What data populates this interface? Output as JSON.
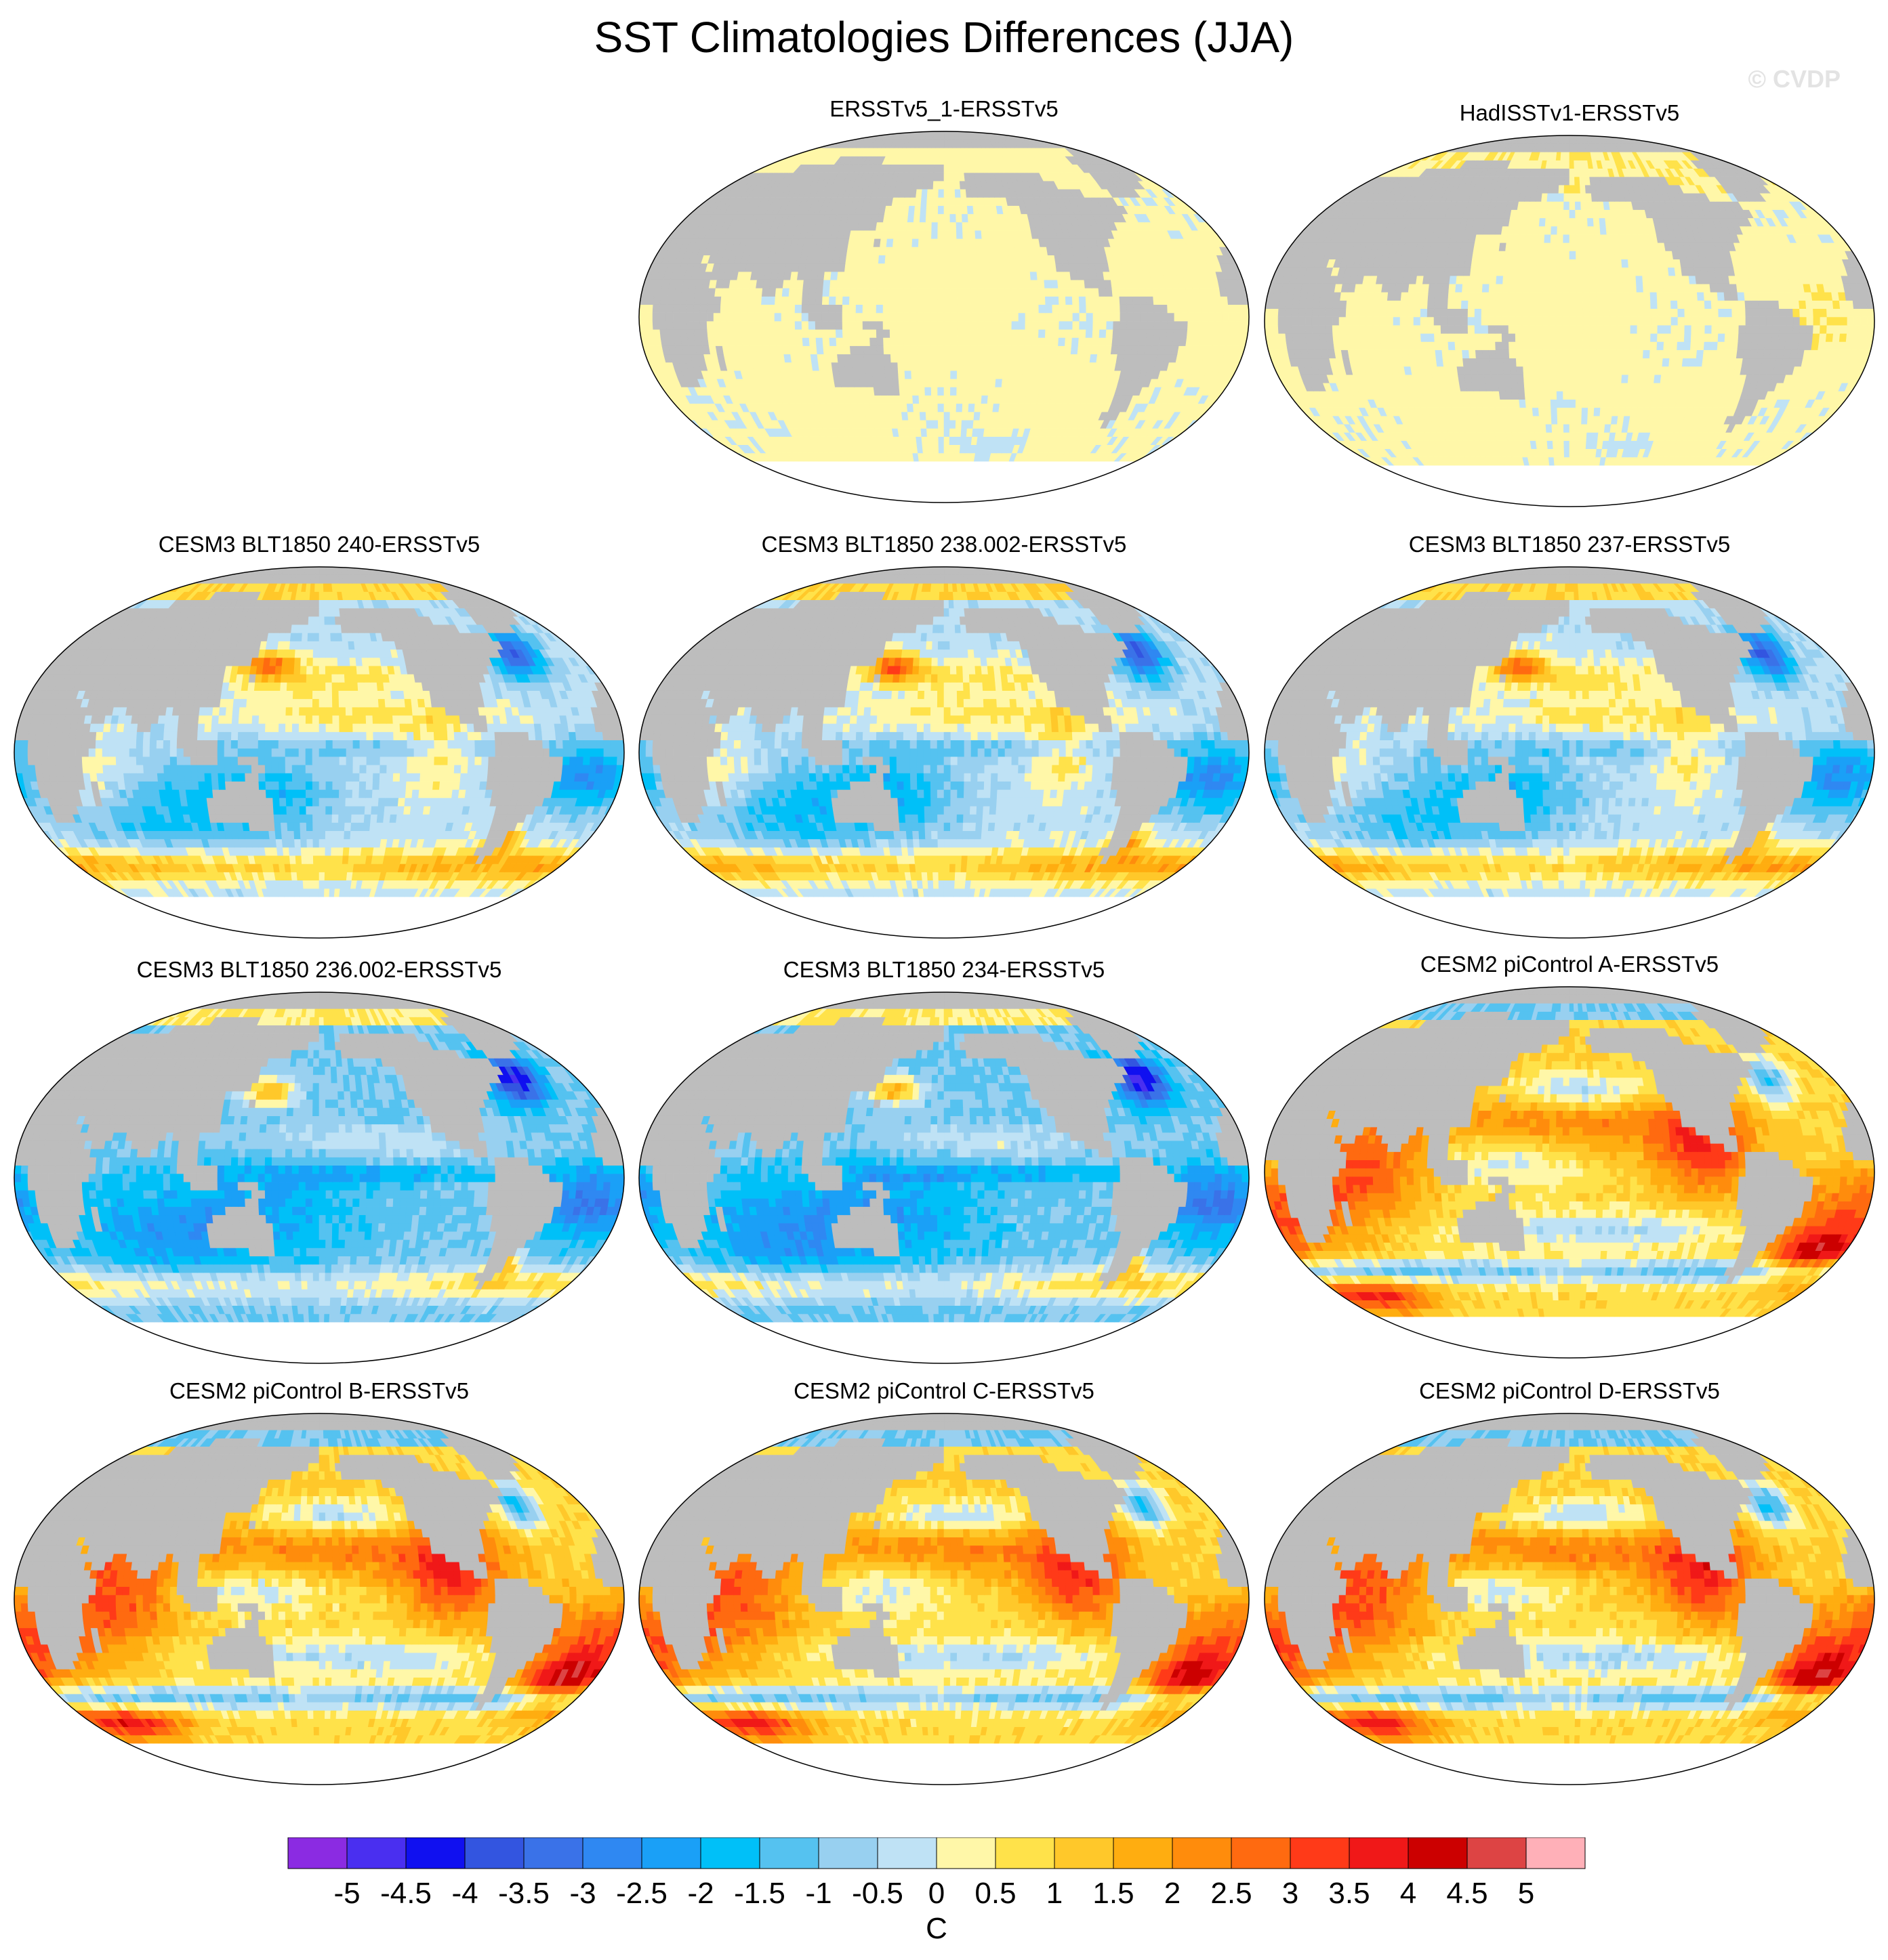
{
  "chart_data": {
    "type": "heatmap",
    "title": "SST Climatologies Differences (JJA)",
    "watermark": "© CVDP",
    "units": "C",
    "projection": "robinson-like world map, Pacific-centered",
    "panels": [
      {
        "id": "p1",
        "title": "ERSSTv5_1-ERSSTv5",
        "pattern": "uniform",
        "amp": 0.25
      },
      {
        "id": "p2",
        "title": "HadISSTv1-ERSSTv5",
        "pattern": "uniform",
        "amp": 0.7
      },
      {
        "id": "p3",
        "title": "CESM3 BLT1850 240-ERSSTv5",
        "pattern": "cesm3",
        "amp": 1.0
      },
      {
        "id": "p4",
        "title": "CESM3 BLT1850 238.002-ERSSTv5",
        "pattern": "cesm3",
        "amp": 1.05
      },
      {
        "id": "p5",
        "title": "CESM3 BLT1850 237-ERSSTv5",
        "pattern": "cesm3",
        "amp": 1.0
      },
      {
        "id": "p6",
        "title": "CESM3 BLT1850 236.002-ERSSTv5",
        "pattern": "cesm3cold",
        "amp": 1.0
      },
      {
        "id": "p7",
        "title": "CESM3 BLT1850 234-ERSSTv5",
        "pattern": "cesm3cold",
        "amp": 1.05
      },
      {
        "id": "p8",
        "title": "CESM2 piControl A-ERSSTv5",
        "pattern": "cesm2",
        "amp": 1.0
      },
      {
        "id": "p9",
        "title": "CESM2 piControl B-ERSSTv5",
        "pattern": "cesm2",
        "amp": 1.05
      },
      {
        "id": "p10",
        "title": "CESM2 piControl C-ERSSTv5",
        "pattern": "cesm2",
        "amp": 1.0
      },
      {
        "id": "p11",
        "title": "CESM2 piControl D-ERSSTv5",
        "pattern": "cesm2",
        "amp": 1.05
      }
    ],
    "colorbar": {
      "levels": [
        -5.5,
        -5,
        -4.5,
        -4,
        -3.5,
        -3,
        -2.5,
        -2,
        -1.5,
        -1,
        -0.5,
        0,
        0.5,
        1,
        1.5,
        2,
        2.5,
        3,
        3.5,
        4,
        4.5,
        5,
        5.5
      ],
      "tick_labels": [
        "-5",
        "-4.5",
        "-4",
        "-3.5",
        "-3",
        "-2.5",
        "-2",
        "-1.5",
        "-1",
        "-0.5",
        "0",
        "0.5",
        "1",
        "1.5",
        "2",
        "2.5",
        "3",
        "3.5",
        "4",
        "4.5",
        "5"
      ],
      "colors": [
        "#8b2be2",
        "#4a2ff0",
        "#1010f0",
        "#3355e0",
        "#3a72e8",
        "#2f88f2",
        "#1aa0f7",
        "#00c0f8",
        "#55c2f0",
        "#98d0f0",
        "#bfe2f5",
        "#fff7a8",
        "#ffe24a",
        "#ffc82a",
        "#ffad10",
        "#ff8c0c",
        "#ff6a10",
        "#ff3a18",
        "#f01818",
        "#cc0000",
        "#dd4444",
        "#ffb0b8"
      ]
    }
  }
}
